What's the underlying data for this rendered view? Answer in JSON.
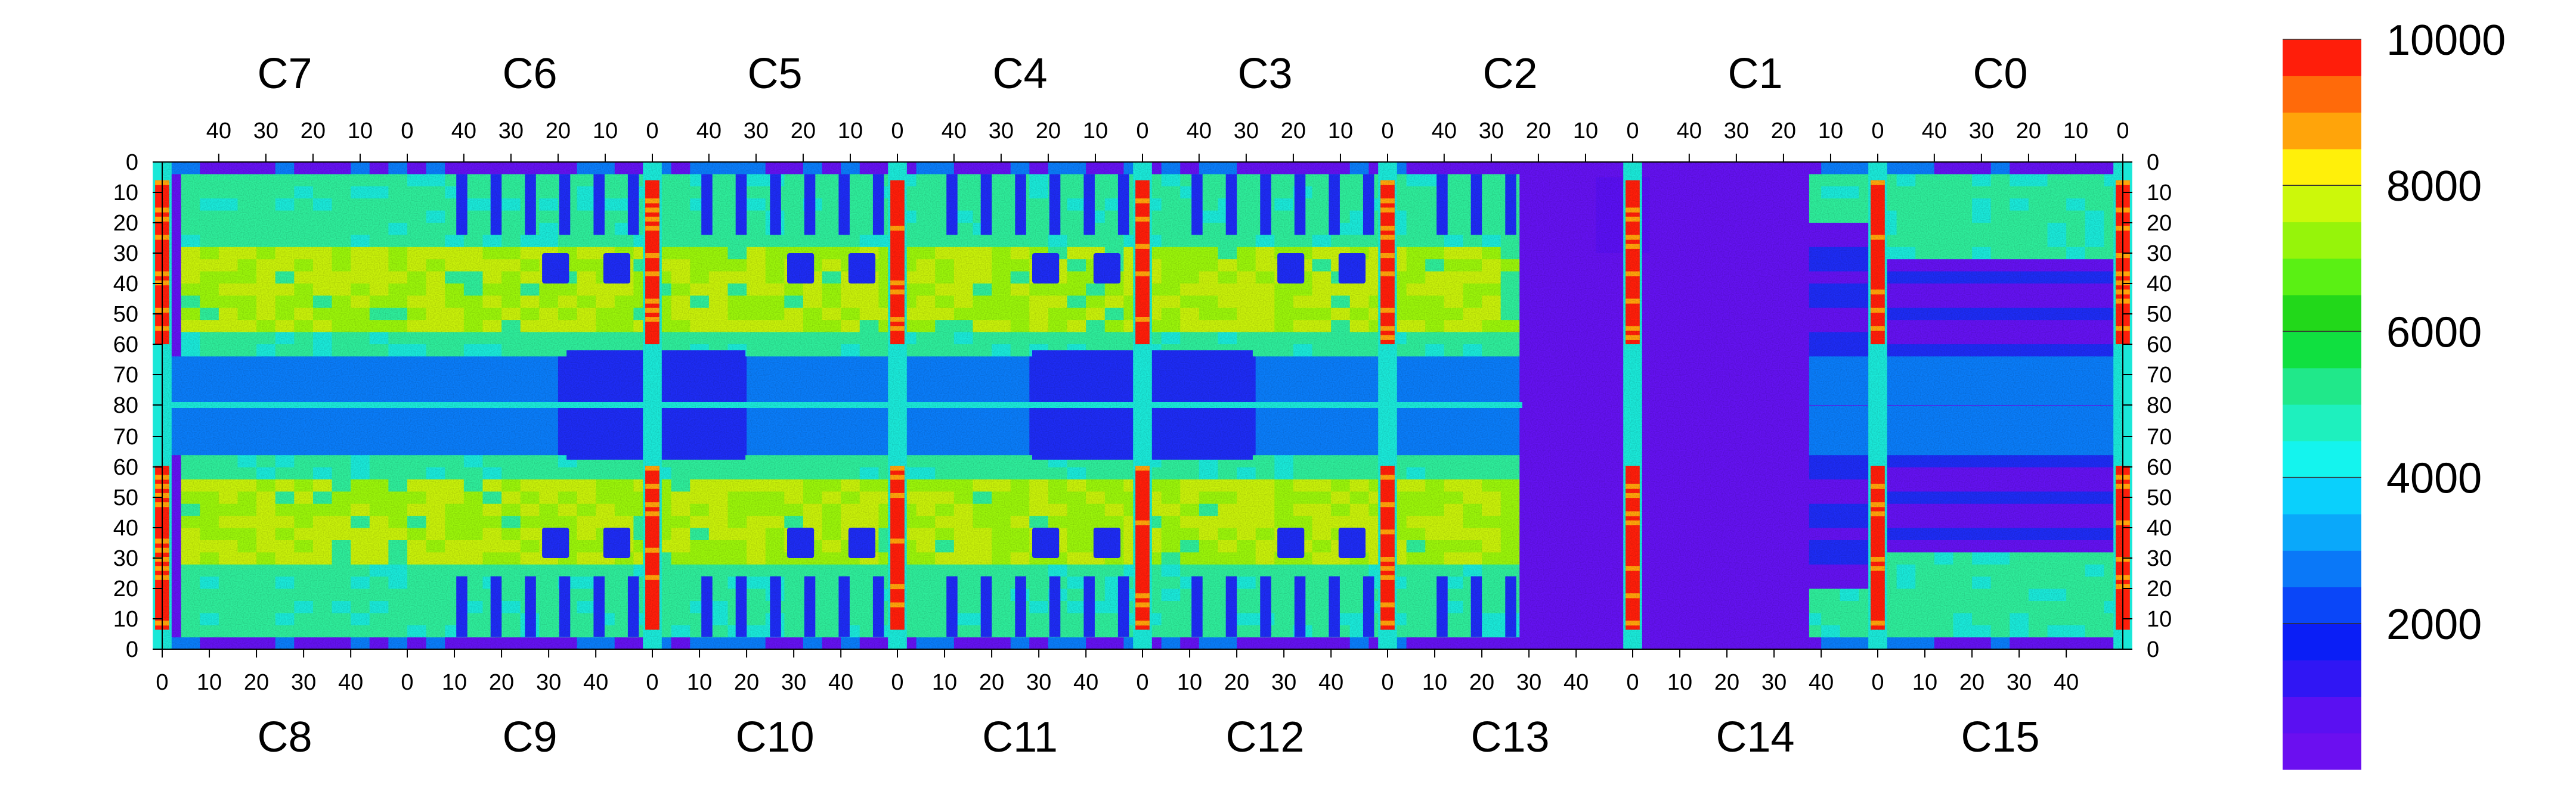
{
  "chart_data": {
    "type": "heatmap",
    "title": "",
    "top_chip_labels": [
      "C7",
      "C6",
      "C5",
      "C4",
      "C3",
      "C2",
      "C1",
      "C0"
    ],
    "bottom_chip_labels": [
      "C8",
      "C9",
      "C10",
      "C11",
      "C12",
      "C13",
      "C14",
      "C15"
    ],
    "top_tick_labels": [
      "40",
      "30",
      "20",
      "10",
      "0"
    ],
    "bottom_tick_labels": [
      "0",
      "10",
      "20",
      "30",
      "40"
    ],
    "y_tick_labels_upper": [
      "0",
      "10",
      "20",
      "30",
      "40",
      "50",
      "60",
      "70",
      "80"
    ],
    "y_tick_labels_lower": [
      "70",
      "60",
      "50",
      "40",
      "30",
      "20",
      "10",
      "0"
    ],
    "columns_per_chip": 52,
    "rows_per_half": 80,
    "z_range": [
      0,
      10000
    ],
    "colorbar_ticks": [
      "2000",
      "4000",
      "6000",
      "8000",
      "10000"
    ],
    "colorbar_levels": 20,
    "colors": {
      "palette": [
        "#6B0FF0",
        "#5A10F2",
        "#3016F4",
        "#0A1EF6",
        "#0A46F8",
        "#0A78F8",
        "#0AA8FA",
        "#0AD0FC",
        "#14F4EE",
        "#1EF0BE",
        "#20E88A",
        "#10E040",
        "#22D81A",
        "#5AF014",
        "#96F40A",
        "#CCF80A",
        "#FFF00A",
        "#FFA40A",
        "#FF6A0A",
        "#FF1E0A"
      ],
      "background": "#6B0FF0",
      "body": "#2EEC9A",
      "hot": "#C8F00A",
      "warm": "#9AF40A",
      "cool": "#1AE8D8",
      "blue": "#0A7CF8",
      "deep": "#1E2CF4",
      "purple": "#6412F0",
      "red": "#FF1E0A",
      "orange": "#FFA40A",
      "cyan": "#14F0F0"
    },
    "regions": {
      "red_column_chips": [
        0,
        2,
        3,
        4,
        5,
        6,
        7,
        8
      ],
      "cold_chip_columns": [
        5.55,
        6.05
      ]
    }
  }
}
